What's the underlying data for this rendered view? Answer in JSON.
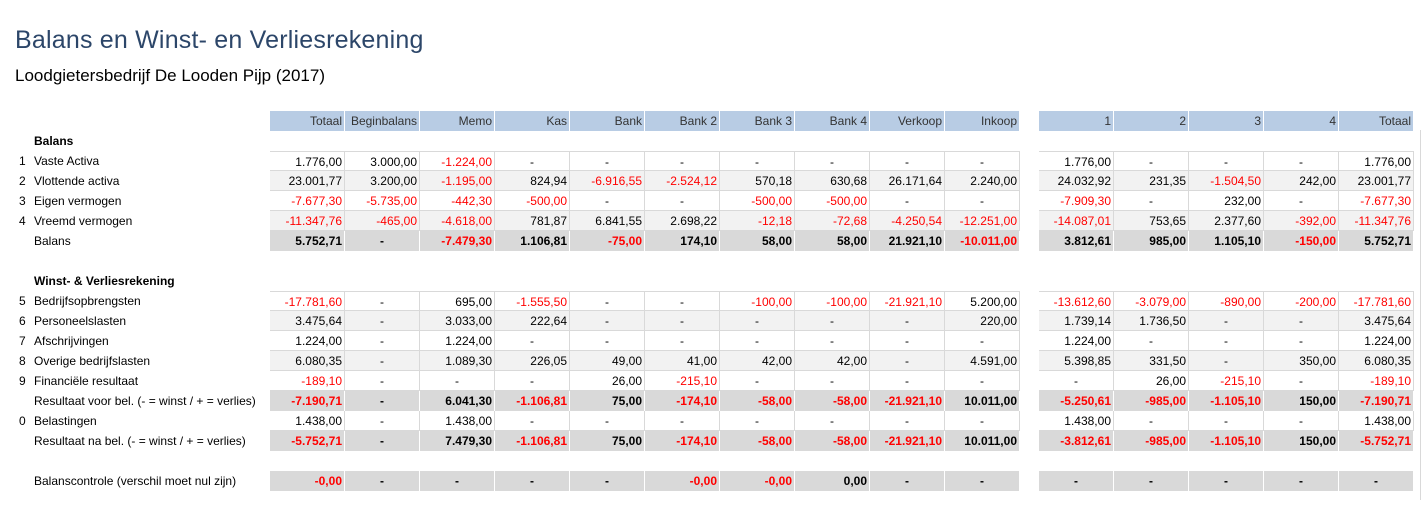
{
  "title": "Balans en Winst- en Verliesrekening",
  "subtitle": "Loodgietersbedrijf De Looden Pijp (2017)",
  "columns": [
    "Totaal",
    "Beginbalans",
    "Memo",
    "Kas",
    "Bank",
    "Bank 2",
    "Bank 3",
    "Bank 4",
    "Verkoop",
    "Inkoop"
  ],
  "columns2": [
    "1",
    "2",
    "3",
    "4",
    "Totaal"
  ],
  "sections": [
    {
      "heading": "Balans",
      "rows": [
        {
          "num": "1",
          "label": "Vaste Activa",
          "type": "normal",
          "cells": [
            "1.776,00",
            "3.000,00",
            "-1.224,00",
            "-",
            "-",
            "-",
            "-",
            "-",
            "-",
            "-"
          ],
          "cells2": [
            "1.776,00",
            "-",
            "-",
            "-",
            "1.776,00"
          ]
        },
        {
          "num": "2",
          "label": "Vlottende activa",
          "type": "alt",
          "cells": [
            "23.001,77",
            "3.200,00",
            "-1.195,00",
            "824,94",
            "-6.916,55",
            "-2.524,12",
            "570,18",
            "630,68",
            "26.171,64",
            "2.240,00"
          ],
          "cells2": [
            "24.032,92",
            "231,35",
            "-1.504,50",
            "242,00",
            "23.001,77"
          ]
        },
        {
          "num": "3",
          "label": "Eigen vermogen",
          "type": "normal",
          "cells": [
            "-7.677,30",
            "-5.735,00",
            "-442,30",
            "-500,00",
            "-",
            "-",
            "-500,00",
            "-500,00",
            "-",
            "-"
          ],
          "cells2": [
            "-7.909,30",
            "-",
            "232,00",
            "-",
            "-7.677,30"
          ]
        },
        {
          "num": "4",
          "label": "Vreemd vermogen",
          "type": "alt",
          "cells": [
            "-11.347,76",
            "-465,00",
            "-4.618,00",
            "781,87",
            "6.841,55",
            "2.698,22",
            "-12,18",
            "-72,68",
            "-4.250,54",
            "-12.251,00"
          ],
          "cells2": [
            "-14.087,01",
            "753,65",
            "2.377,60",
            "-392,00",
            "-11.347,76"
          ]
        },
        {
          "num": "",
          "label": "Balans",
          "type": "total",
          "cells": [
            "5.752,71",
            "-",
            "-7.479,30",
            "1.106,81",
            "-75,00",
            "174,10",
            "58,00",
            "58,00",
            "21.921,10",
            "-10.011,00"
          ],
          "cells2": [
            "3.812,61",
            "985,00",
            "1.105,10",
            "-150,00",
            "5.752,71"
          ]
        }
      ]
    },
    {
      "heading": "Winst- & Verliesrekening",
      "rows": [
        {
          "num": "5",
          "label": "Bedrijfsopbrengsten",
          "type": "normal",
          "cells": [
            "-17.781,60",
            "-",
            "695,00",
            "-1.555,50",
            "-",
            "-",
            "-100,00",
            "-100,00",
            "-21.921,10",
            "5.200,00"
          ],
          "cells2": [
            "-13.612,60",
            "-3.079,00",
            "-890,00",
            "-200,00",
            "-17.781,60"
          ]
        },
        {
          "num": "6",
          "label": "Personeelslasten",
          "type": "alt",
          "cells": [
            "3.475,64",
            "-",
            "3.033,00",
            "222,64",
            "-",
            "-",
            "-",
            "-",
            "-",
            "220,00"
          ],
          "cells2": [
            "1.739,14",
            "1.736,50",
            "-",
            "-",
            "3.475,64"
          ]
        },
        {
          "num": "7",
          "label": "Afschrijvingen",
          "type": "normal",
          "cells": [
            "1.224,00",
            "-",
            "1.224,00",
            "-",
            "-",
            "-",
            "-",
            "-",
            "-",
            "-"
          ],
          "cells2": [
            "1.224,00",
            "-",
            "-",
            "-",
            "1.224,00"
          ]
        },
        {
          "num": "8",
          "label": "Overige bedrijfslasten",
          "type": "alt",
          "cells": [
            "6.080,35",
            "-",
            "1.089,30",
            "226,05",
            "49,00",
            "41,00",
            "42,00",
            "42,00",
            "-",
            "4.591,00"
          ],
          "cells2": [
            "5.398,85",
            "331,50",
            "-",
            "350,00",
            "6.080,35"
          ]
        },
        {
          "num": "9",
          "label": "Financiële resultaat",
          "type": "normal",
          "cells": [
            "-189,10",
            "-",
            "-",
            "-",
            "26,00",
            "-215,10",
            "-",
            "-",
            "-",
            "-"
          ],
          "cells2": [
            "-",
            "26,00",
            "-215,10",
            "-",
            "-189,10"
          ]
        },
        {
          "num": "",
          "label": "Resultaat voor bel. (- = winst / + = verlies)",
          "type": "total",
          "cells": [
            "-7.190,71",
            "-",
            "6.041,30",
            "-1.106,81",
            "75,00",
            "-174,10",
            "-58,00",
            "-58,00",
            "-21.921,10",
            "10.011,00"
          ],
          "cells2": [
            "-5.250,61",
            "-985,00",
            "-1.105,10",
            "150,00",
            "-7.190,71"
          ]
        },
        {
          "num": "0",
          "label": "Belastingen",
          "type": "normal",
          "cells": [
            "1.438,00",
            "-",
            "1.438,00",
            "-",
            "-",
            "-",
            "-",
            "-",
            "-",
            "-"
          ],
          "cells2": [
            "1.438,00",
            "-",
            "-",
            "-",
            "1.438,00"
          ]
        },
        {
          "num": "",
          "label": "Resultaat na bel. (- = winst / + = verlies)",
          "type": "total",
          "cells": [
            "-5.752,71",
            "-",
            "7.479,30",
            "-1.106,81",
            "75,00",
            "-174,10",
            "-58,00",
            "-58,00",
            "-21.921,10",
            "10.011,00"
          ],
          "cells2": [
            "-3.812,61",
            "-985,00",
            "-1.105,10",
            "150,00",
            "-5.752,71"
          ]
        }
      ]
    }
  ],
  "control": {
    "label": "Balanscontrole (verschil moet nul zijn)",
    "cells": [
      "-0,00",
      "-",
      "-",
      "-",
      "-",
      "-0,00",
      "-0,00",
      "0,00",
      "-",
      "-"
    ],
    "cells2": [
      "-",
      "-",
      "-",
      "-",
      "-"
    ]
  },
  "colors": {
    "header": "#b8cce4",
    "negative": "#ff0000",
    "total": "#d9d9d9",
    "alt": "#f2f2f2",
    "title": "#2c4669"
  }
}
